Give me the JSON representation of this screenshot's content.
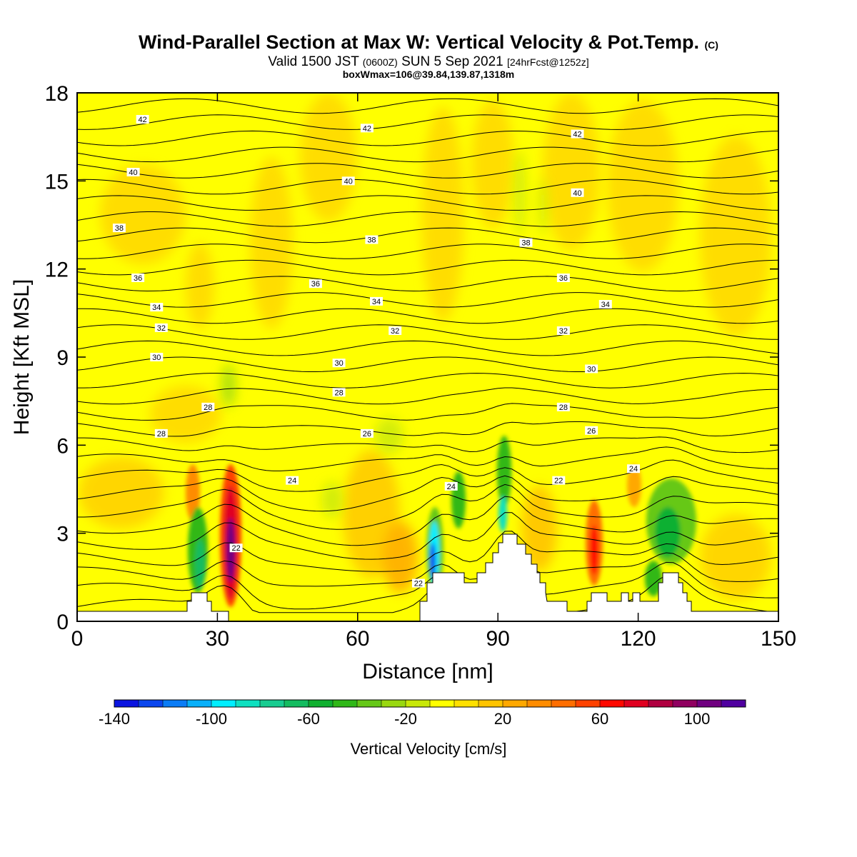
{
  "header": {
    "title_main": "Wind-Parallel Section at Max W: Vertical Velocity & Pot.Temp.",
    "title_c": "(C)",
    "subtitle_a": "Valid 1500 JST",
    "subtitle_b": "(0600Z)",
    "subtitle_c": "SUN 5 Sep 2021",
    "subtitle_d": "[24hrFcst@1252z]",
    "subtitle2": "boxWmax=106@39.84,139.87,1318m"
  },
  "chart_data": {
    "type": "heatmap",
    "xlabel": "Distance [nm]",
    "ylabel": "Height [Kft MSL]",
    "xlim": [
      0,
      150
    ],
    "ylim": [
      0,
      18
    ],
    "xticks": [
      0,
      30,
      60,
      90,
      120,
      150
    ],
    "yticks": [
      0,
      3,
      6,
      9,
      12,
      15,
      18
    ],
    "colorbar": {
      "title": "Vertical Velocity [cm/s]",
      "range": [
        -140,
        120
      ],
      "step": 10,
      "tick_values": [
        -140,
        -100,
        -60,
        -20,
        20,
        60,
        100
      ],
      "tick_labels": [
        "-140",
        "-100",
        "-60",
        "-20",
        "20",
        "60",
        "100"
      ],
      "colors": [
        "#0a14e0",
        "#0a46ee",
        "#0a7cf6",
        "#08b0fa",
        "#00eeff",
        "#0ee0c0",
        "#18cc90",
        "#14bc60",
        "#10b030",
        "#30b818",
        "#66c818",
        "#99d810",
        "#c8e808",
        "#ffff00",
        "#ffe000",
        "#ffc400",
        "#ffa800",
        "#ff8c00",
        "#ff6e00",
        "#ff4200",
        "#ff0800",
        "#e00020",
        "#b00040",
        "#900060",
        "#700080",
        "#5000a0"
      ]
    },
    "contour_labels": [
      {
        "x": 14,
        "y": 17.1,
        "text": "42"
      },
      {
        "x": 62,
        "y": 16.8,
        "text": "42"
      },
      {
        "x": 107,
        "y": 16.6,
        "text": "42"
      },
      {
        "x": 12,
        "y": 15.3,
        "text": "40"
      },
      {
        "x": 58,
        "y": 15.0,
        "text": "40"
      },
      {
        "x": 107,
        "y": 14.6,
        "text": "40"
      },
      {
        "x": 9,
        "y": 13.4,
        "text": "38"
      },
      {
        "x": 63,
        "y": 13.0,
        "text": "38"
      },
      {
        "x": 96,
        "y": 12.9,
        "text": "38"
      },
      {
        "x": 13,
        "y": 11.7,
        "text": "36"
      },
      {
        "x": 51,
        "y": 11.5,
        "text": "36"
      },
      {
        "x": 104,
        "y": 11.7,
        "text": "36"
      },
      {
        "x": 17,
        "y": 10.7,
        "text": "34"
      },
      {
        "x": 64,
        "y": 10.9,
        "text": "34"
      },
      {
        "x": 113,
        "y": 10.8,
        "text": "34"
      },
      {
        "x": 18,
        "y": 10.0,
        "text": "32"
      },
      {
        "x": 68,
        "y": 9.9,
        "text": "32"
      },
      {
        "x": 104,
        "y": 9.9,
        "text": "32"
      },
      {
        "x": 17,
        "y": 9.0,
        "text": "30"
      },
      {
        "x": 56,
        "y": 8.8,
        "text": "30"
      },
      {
        "x": 110,
        "y": 8.6,
        "text": "30"
      },
      {
        "x": 28,
        "y": 7.3,
        "text": "28"
      },
      {
        "x": 56,
        "y": 7.8,
        "text": "28"
      },
      {
        "x": 104,
        "y": 7.3,
        "text": "28"
      },
      {
        "x": 18,
        "y": 6.4,
        "text": "28"
      },
      {
        "x": 62,
        "y": 6.4,
        "text": "26"
      },
      {
        "x": 110,
        "y": 6.5,
        "text": "26"
      },
      {
        "x": 46,
        "y": 4.8,
        "text": "24"
      },
      {
        "x": 80,
        "y": 4.6,
        "text": "24"
      },
      {
        "x": 119,
        "y": 5.2,
        "text": "24"
      },
      {
        "x": 103,
        "y": 4.8,
        "text": "22"
      },
      {
        "x": 34,
        "y": 2.5,
        "text": "22"
      },
      {
        "x": 73,
        "y": 1.3,
        "text": "22"
      }
    ]
  }
}
